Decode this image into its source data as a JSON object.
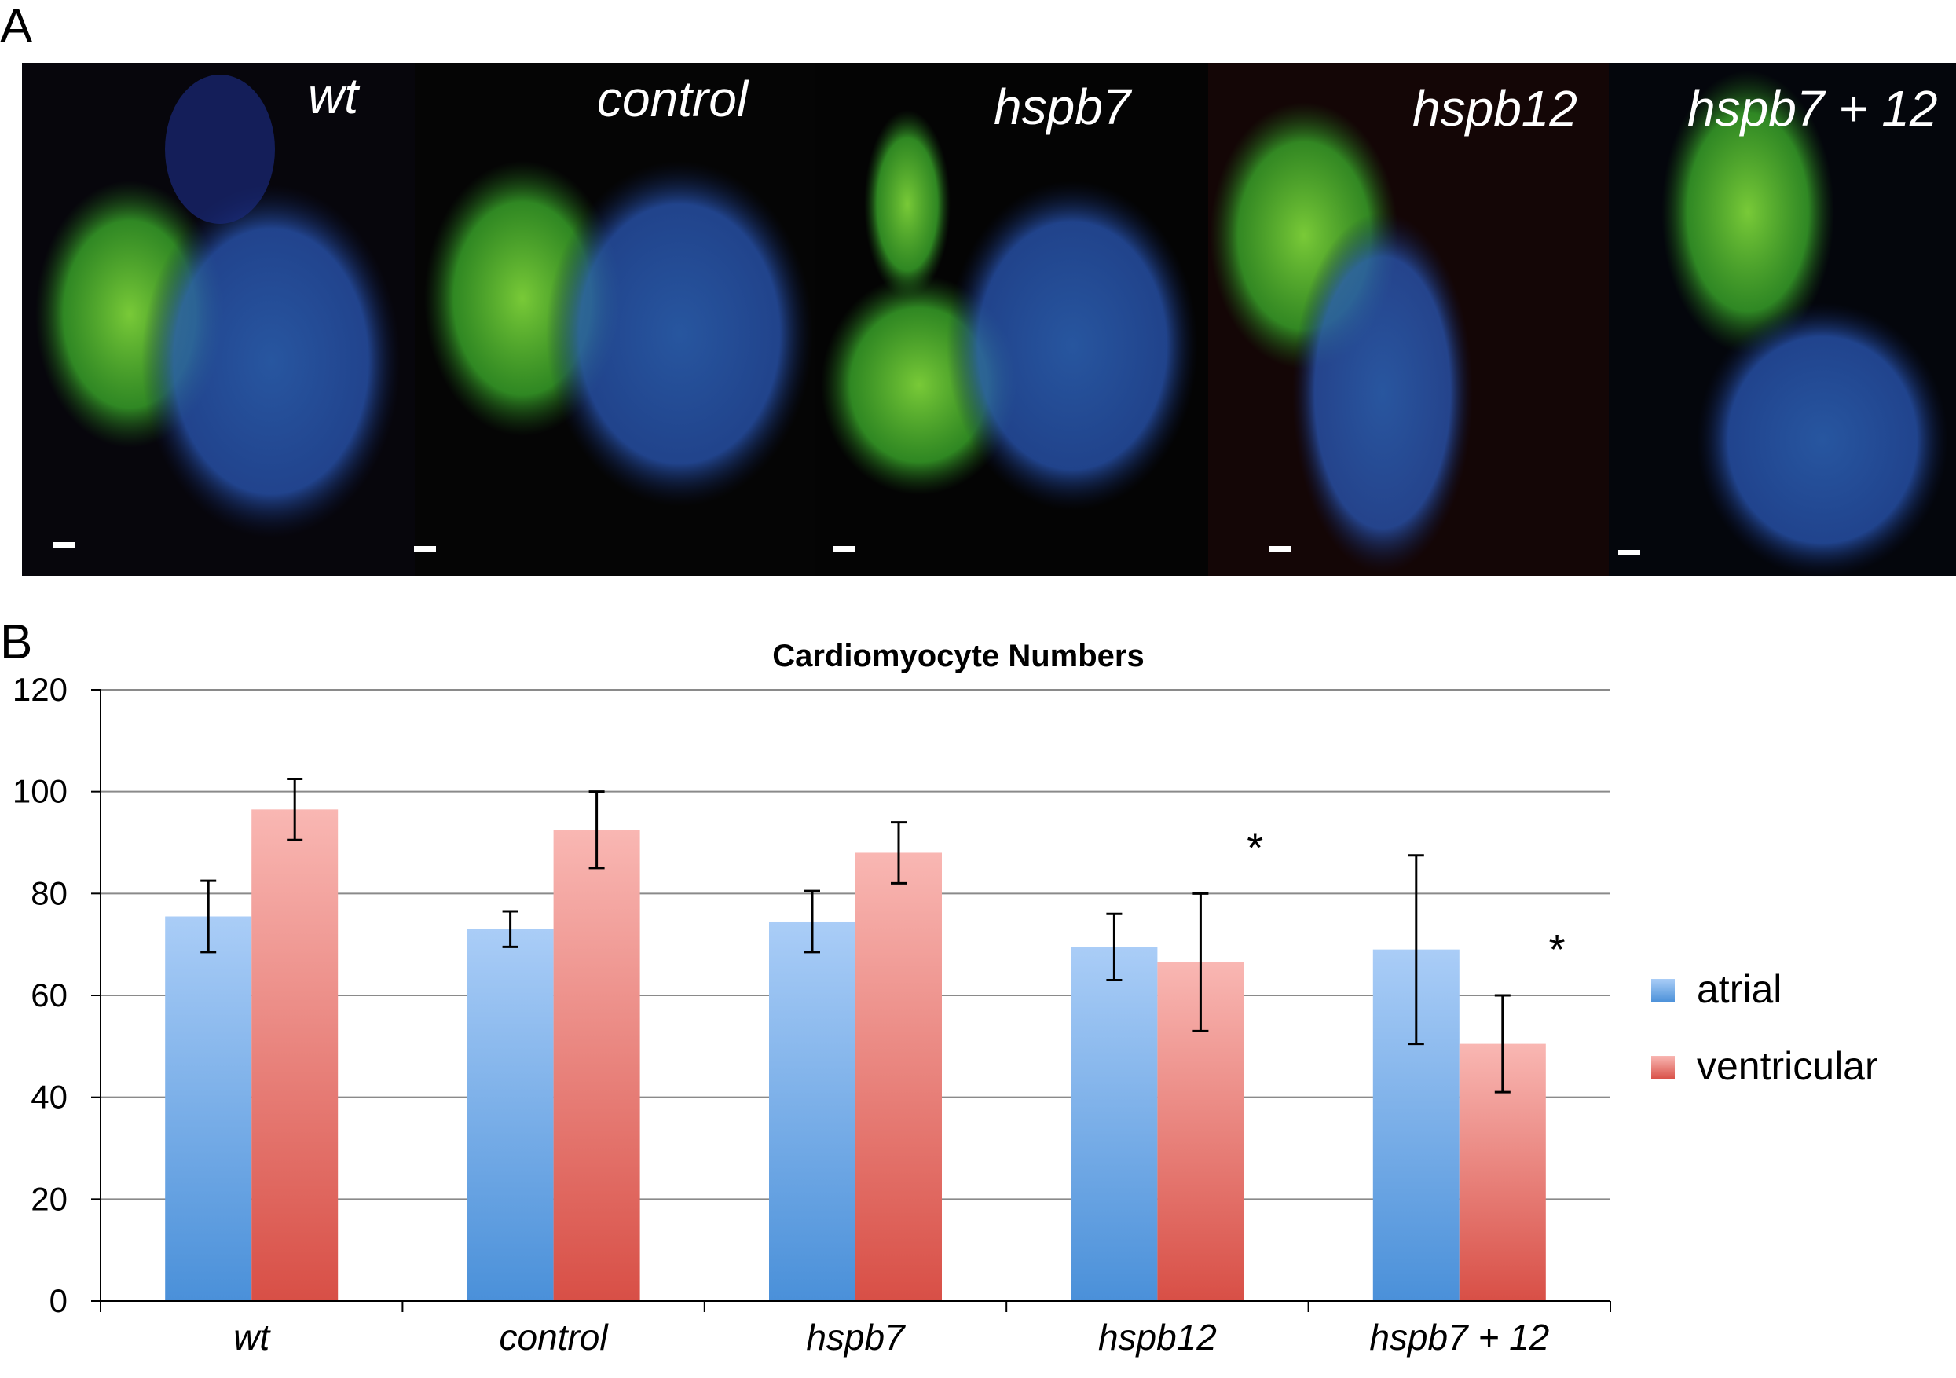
{
  "panel_a": {
    "letter": "A",
    "images": [
      {
        "label": "wt"
      },
      {
        "label": "control"
      },
      {
        "label": "hspb7"
      },
      {
        "label": "hspb12"
      },
      {
        "label": "hspb7 + 12"
      }
    ]
  },
  "panel_b": {
    "letter": "B"
  },
  "chart_data": {
    "type": "bar",
    "title": "Cardiomyocyte Numbers",
    "xlabel": "",
    "ylabel": "",
    "ylim": [
      0,
      120
    ],
    "yticks": [
      "0",
      "20",
      "40",
      "60",
      "80",
      "100",
      "120"
    ],
    "categories": [
      "wt",
      "control",
      "hspb7",
      "hspb12",
      "hspb7 + 12"
    ],
    "series": [
      {
        "name": "atrial",
        "color": "#6fa8e6",
        "values": [
          75.5,
          73,
          74.5,
          69.5,
          69
        ],
        "errors": [
          7,
          3.5,
          6,
          6.5,
          18.5
        ]
      },
      {
        "name": "ventricular",
        "color": "#ef8b86",
        "values": [
          96.5,
          92.5,
          88,
          66.5,
          50.5
        ],
        "errors": [
          6,
          7.5,
          6,
          13.5,
          9.5
        ]
      }
    ],
    "significance": [
      {
        "category": "hspb12",
        "series": "ventricular",
        "marker": "*"
      },
      {
        "category": "hspb7 + 12",
        "series": "ventricular",
        "marker": "*"
      }
    ],
    "legend_position": "right",
    "grid": true
  }
}
